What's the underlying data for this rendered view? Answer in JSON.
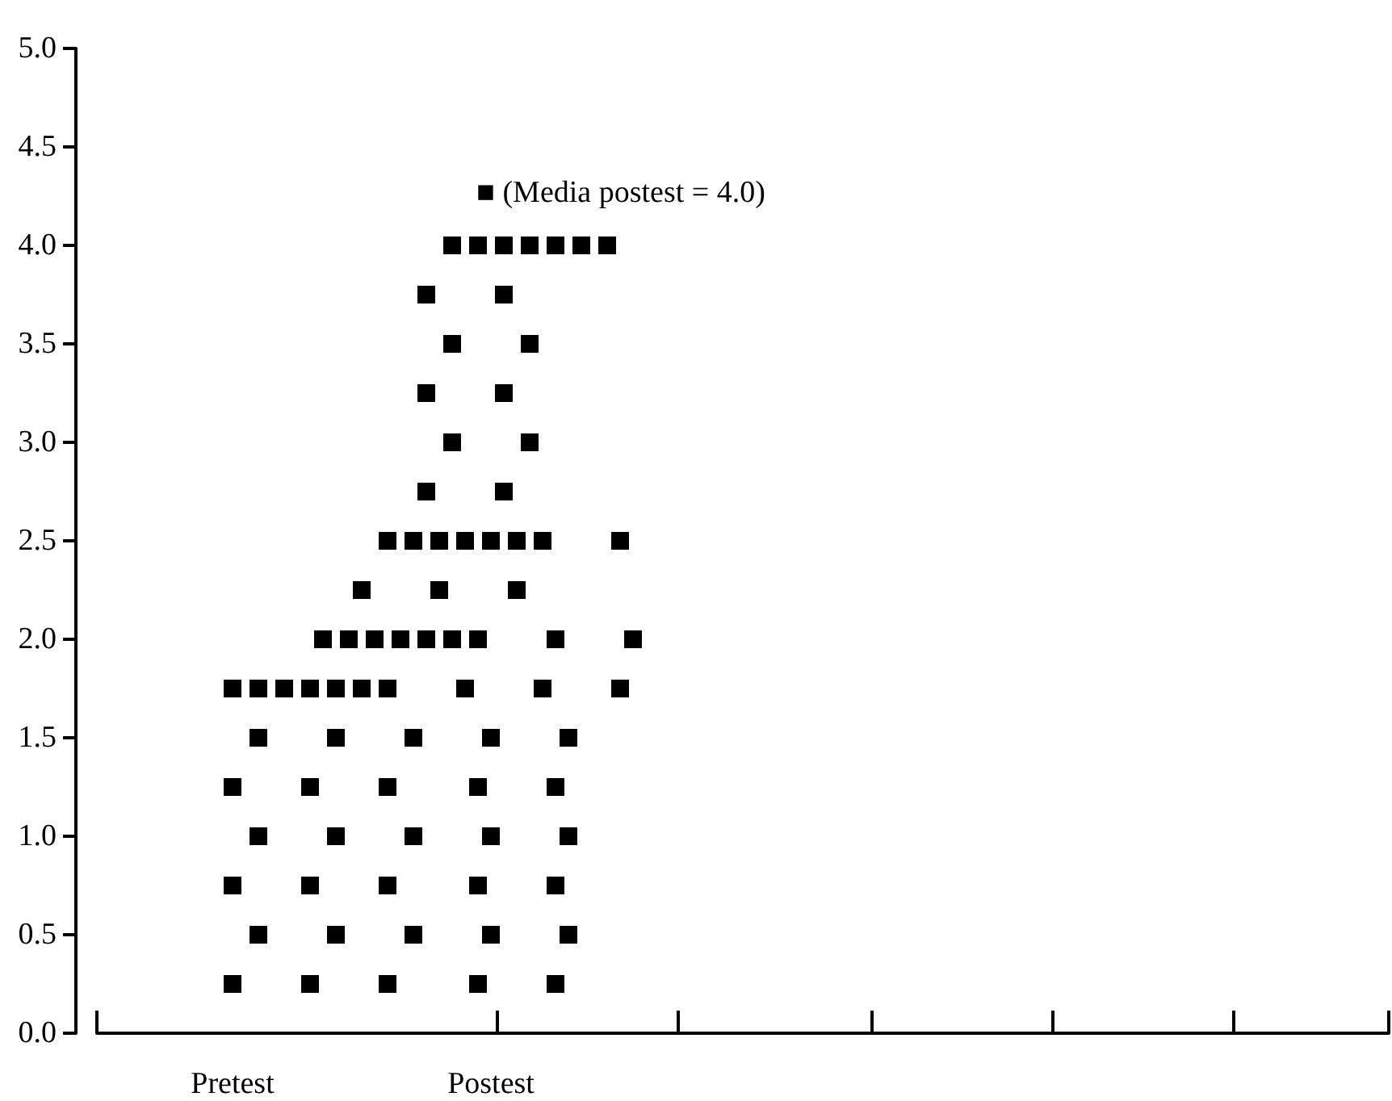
{
  "chart_data": {
    "type": "scatter",
    "marker": "square",
    "categories": [
      null,
      null,
      null,
      null,
      null,
      null,
      null,
      null,
      null,
      null,
      "Pretest",
      null,
      null,
      null,
      null,
      null,
      null,
      null,
      null,
      null,
      null,
      null,
      null,
      null,
      null,
      null,
      null,
      null,
      null,
      null,
      "Postest",
      null,
      null,
      null,
      null,
      null,
      null,
      null,
      null,
      null,
      null,
      null,
      null,
      null,
      null,
      null,
      null,
      null,
      null,
      null,
      null,
      null,
      null,
      null,
      null,
      null,
      null,
      null,
      null,
      null,
      null,
      null,
      null,
      null,
      null,
      null,
      null,
      null,
      null,
      null,
      null,
      null,
      null,
      null,
      null,
      null,
      null,
      null,
      null,
      null,
      null,
      null,
      null,
      null,
      null,
      null,
      null,
      null,
      null,
      null,
      null,
      null,
      null,
      null,
      null,
      null,
      null,
      null,
      null,
      null
    ],
    "ylim": [
      0,
      5
    ],
    "yticks": [
      {
        "value": 0,
        "label": "0.0"
      },
      {
        "value": 0.5,
        "label": "0.5"
      },
      {
        "value": 1,
        "label": "1.0"
      },
      {
        "value": 1.5,
        "label": "1.5"
      },
      {
        "value": 2,
        "label": "2.0"
      },
      {
        "value": 2.5,
        "label": "2.5"
      },
      {
        "value": 3,
        "label": "3.0"
      },
      {
        "value": 3.5,
        "label": "3.5"
      },
      {
        "value": 4,
        "label": "4.0"
      },
      {
        "value": 4.5,
        "label": "4.5"
      },
      {
        "value": 5,
        "label": "5.0"
      }
    ],
    "annotations": [
      "■ (Media postest = 4.0)"
    ],
    "series": [
      {
        "color": "#000000",
        "values": [
          null,
          null,
          null,
          null,
          null,
          null,
          null,
          null,
          null,
          null,
          0.25,
          null,
          null,
          null,
          null,
          null,
          0.25,
          null,
          null,
          null,
          null,
          null,
          0.25,
          null,
          null,
          null,
          null,
          null,
          null,
          0.25,
          null,
          null,
          null,
          null,
          null,
          0.25,
          null,
          null,
          null,
          null,
          null,
          null,
          null,
          null,
          null,
          null,
          null,
          null,
          null,
          null,
          null,
          null,
          null,
          null,
          null,
          null,
          null,
          null,
          null,
          null,
          null,
          null,
          null,
          null,
          null,
          null,
          null,
          null,
          null,
          null,
          null,
          null,
          null,
          null,
          null,
          null,
          null,
          null,
          null,
          null,
          null,
          null,
          null,
          null,
          null,
          null,
          null,
          null,
          null,
          null,
          null,
          null,
          null,
          null,
          null,
          null,
          null,
          null,
          null,
          null
        ]
      },
      {
        "color": "#000000",
        "values": [
          null,
          null,
          null,
          null,
          null,
          null,
          null,
          null,
          null,
          null,
          null,
          null,
          0.5,
          null,
          null,
          null,
          null,
          null,
          0.5,
          null,
          null,
          null,
          null,
          null,
          0.5,
          null,
          null,
          null,
          null,
          null,
          0.5,
          null,
          null,
          null,
          null,
          null,
          0.5,
          null,
          null,
          null,
          null,
          null,
          null,
          null,
          null,
          null,
          null,
          null,
          null,
          null,
          null,
          null,
          null,
          null,
          null,
          null,
          null,
          null,
          null,
          null,
          null,
          null,
          null,
          null,
          null,
          null,
          null,
          null,
          null,
          null,
          null,
          null,
          null,
          null,
          null,
          null,
          null,
          null,
          null,
          null,
          null,
          null,
          null,
          null,
          null,
          null,
          null,
          null,
          null,
          null,
          null,
          null,
          null,
          null,
          null,
          null,
          null,
          null,
          null,
          null
        ]
      },
      {
        "color": "#000000",
        "values": [
          null,
          null,
          null,
          null,
          null,
          null,
          null,
          null,
          null,
          null,
          0.75,
          null,
          null,
          null,
          null,
          null,
          0.75,
          null,
          null,
          null,
          null,
          null,
          0.75,
          null,
          null,
          null,
          null,
          null,
          null,
          0.75,
          null,
          null,
          null,
          null,
          null,
          0.75,
          null,
          null,
          null,
          null,
          null,
          null,
          null,
          null,
          null,
          null,
          null,
          null,
          null,
          null,
          null,
          null,
          null,
          null,
          null,
          null,
          null,
          null,
          null,
          null,
          null,
          null,
          null,
          null,
          null,
          null,
          null,
          null,
          null,
          null,
          null,
          null,
          null,
          null,
          null,
          null,
          null,
          null,
          null,
          null,
          null,
          null,
          null,
          null,
          null,
          null,
          null,
          null,
          null,
          null,
          null,
          null,
          null,
          null,
          null,
          null,
          null,
          null,
          null,
          null
        ]
      },
      {
        "color": "#000000",
        "values": [
          null,
          null,
          null,
          null,
          null,
          null,
          null,
          null,
          null,
          null,
          null,
          null,
          1,
          null,
          null,
          null,
          null,
          null,
          1,
          null,
          null,
          null,
          null,
          null,
          1,
          null,
          null,
          null,
          null,
          null,
          1,
          null,
          null,
          null,
          null,
          null,
          1,
          null,
          null,
          null,
          null,
          null,
          null,
          null,
          null,
          null,
          null,
          null,
          null,
          null,
          null,
          null,
          null,
          null,
          null,
          null,
          null,
          null,
          null,
          null,
          null,
          null,
          null,
          null,
          null,
          null,
          null,
          null,
          null,
          null,
          null,
          null,
          null,
          null,
          null,
          null,
          null,
          null,
          null,
          null,
          null,
          null,
          null,
          null,
          null,
          null,
          null,
          null,
          null,
          null,
          null,
          null,
          null,
          null,
          null,
          null,
          null,
          null,
          null,
          null
        ]
      },
      {
        "color": "#000000",
        "values": [
          null,
          null,
          null,
          null,
          null,
          null,
          null,
          null,
          null,
          null,
          1.25,
          null,
          null,
          null,
          null,
          null,
          1.25,
          null,
          null,
          null,
          null,
          null,
          1.25,
          null,
          null,
          null,
          null,
          null,
          null,
          1.25,
          null,
          null,
          null,
          null,
          null,
          1.25,
          null,
          null,
          null,
          null,
          null,
          null,
          null,
          null,
          null,
          null,
          null,
          null,
          null,
          null,
          null,
          null,
          null,
          null,
          null,
          null,
          null,
          null,
          null,
          null,
          null,
          null,
          null,
          null,
          null,
          null,
          null,
          null,
          null,
          null,
          null,
          null,
          null,
          null,
          null,
          null,
          null,
          null,
          null,
          null,
          null,
          null,
          null,
          null,
          null,
          null,
          null,
          null,
          null,
          null,
          null,
          null,
          null,
          null,
          null,
          null,
          null,
          null,
          null,
          null
        ]
      },
      {
        "color": "#000000",
        "values": [
          null,
          null,
          null,
          null,
          null,
          null,
          null,
          null,
          null,
          null,
          null,
          null,
          1.5,
          null,
          null,
          null,
          null,
          null,
          1.5,
          null,
          null,
          null,
          null,
          null,
          1.5,
          null,
          null,
          null,
          null,
          null,
          1.5,
          null,
          null,
          null,
          null,
          null,
          1.5,
          null,
          null,
          null,
          null,
          null,
          null,
          null,
          null,
          null,
          null,
          null,
          null,
          null,
          null,
          null,
          null,
          null,
          null,
          null,
          null,
          null,
          null,
          null,
          null,
          null,
          null,
          null,
          null,
          null,
          null,
          null,
          null,
          null,
          null,
          null,
          null,
          null,
          null,
          null,
          null,
          null,
          null,
          null,
          null,
          null,
          null,
          null,
          null,
          null,
          null,
          null,
          null,
          null,
          null,
          null,
          null,
          null,
          null,
          null,
          null,
          null,
          null,
          null
        ]
      },
      {
        "color": "#000000",
        "values": [
          null,
          null,
          null,
          null,
          null,
          null,
          null,
          null,
          null,
          null,
          1.75,
          null,
          1.75,
          null,
          1.75,
          null,
          1.75,
          null,
          1.75,
          null,
          1.75,
          null,
          1.75,
          null,
          null,
          null,
          null,
          null,
          1.75,
          null,
          null,
          null,
          null,
          null,
          1.75,
          null,
          null,
          null,
          null,
          null,
          1.75,
          null,
          null,
          null,
          null,
          null,
          null,
          null,
          null,
          null,
          null,
          null,
          null,
          null,
          null,
          null,
          null,
          null,
          null,
          null,
          null,
          null,
          null,
          null,
          null,
          null,
          null,
          null,
          null,
          null,
          null,
          null,
          null,
          null,
          null,
          null,
          null,
          null,
          null,
          null,
          null,
          null,
          null,
          null,
          null,
          null,
          null,
          null,
          null,
          null,
          null,
          null,
          null,
          null,
          null,
          null,
          null,
          null,
          null,
          null
        ]
      },
      {
        "color": "#000000",
        "values": [
          null,
          null,
          null,
          null,
          null,
          null,
          null,
          null,
          null,
          null,
          null,
          null,
          null,
          null,
          null,
          null,
          null,
          2,
          null,
          2,
          null,
          2,
          null,
          2,
          null,
          2,
          null,
          2,
          null,
          2,
          null,
          null,
          null,
          null,
          null,
          2,
          null,
          null,
          null,
          null,
          null,
          2,
          null,
          null,
          null,
          null,
          null,
          null,
          null,
          null,
          null,
          null,
          null,
          null,
          null,
          null,
          null,
          null,
          null,
          null,
          null,
          null,
          null,
          null,
          null,
          null,
          null,
          null,
          null,
          null,
          null,
          null,
          null,
          null,
          null,
          null,
          null,
          null,
          null,
          null,
          null,
          null,
          null,
          null,
          null,
          null,
          null,
          null,
          null,
          null,
          null,
          null,
          null,
          null,
          null,
          null,
          null,
          null,
          null,
          null
        ]
      },
      {
        "color": "#000000",
        "values": [
          null,
          null,
          null,
          null,
          null,
          null,
          null,
          null,
          null,
          null,
          null,
          null,
          null,
          null,
          null,
          null,
          null,
          null,
          null,
          null,
          2.25,
          null,
          null,
          null,
          null,
          null,
          2.25,
          null,
          null,
          null,
          null,
          null,
          2.25,
          null,
          null,
          null,
          null,
          null,
          null,
          null,
          null,
          null,
          null,
          null,
          null,
          null,
          null,
          null,
          null,
          null,
          null,
          null,
          null,
          null,
          null,
          null,
          null,
          null,
          null,
          null,
          null,
          null,
          null,
          null,
          null,
          null,
          null,
          null,
          null,
          null,
          null,
          null,
          null,
          null,
          null,
          null,
          null,
          null,
          null,
          null,
          null,
          null,
          null,
          null,
          null,
          null,
          null,
          null,
          null,
          null,
          null,
          null,
          null,
          null,
          null,
          null,
          null,
          null,
          null,
          null
        ]
      },
      {
        "color": "#000000",
        "values": [
          null,
          null,
          null,
          null,
          null,
          null,
          null,
          null,
          null,
          null,
          null,
          null,
          null,
          null,
          null,
          null,
          null,
          null,
          null,
          null,
          null,
          null,
          2.5,
          null,
          2.5,
          null,
          2.5,
          null,
          2.5,
          null,
          2.5,
          null,
          2.5,
          null,
          2.5,
          null,
          null,
          null,
          null,
          null,
          2.5,
          null,
          null,
          null,
          null,
          null,
          null,
          null,
          null,
          null,
          null,
          null,
          null,
          null,
          null,
          null,
          null,
          null,
          null,
          null,
          null,
          null,
          null,
          null,
          null,
          null,
          null,
          null,
          null,
          null,
          null,
          null,
          null,
          null,
          null,
          null,
          null,
          null,
          null,
          null,
          null,
          null,
          null,
          null,
          null,
          null,
          null,
          null,
          null,
          null,
          null,
          null,
          null,
          null,
          null,
          null,
          null,
          null,
          null,
          null
        ]
      },
      {
        "color": "#000000",
        "values": [
          null,
          null,
          null,
          null,
          null,
          null,
          null,
          null,
          null,
          null,
          null,
          null,
          null,
          null,
          null,
          null,
          null,
          null,
          null,
          null,
          null,
          null,
          null,
          null,
          null,
          2.75,
          null,
          null,
          null,
          null,
          null,
          2.75,
          null,
          null,
          null,
          null,
          null,
          null,
          null,
          null,
          null,
          null,
          null,
          null,
          null,
          null,
          null,
          null,
          null,
          null,
          null,
          null,
          null,
          null,
          null,
          null,
          null,
          null,
          null,
          null,
          null,
          null,
          null,
          null,
          null,
          null,
          null,
          null,
          null,
          null,
          null,
          null,
          null,
          null,
          null,
          null,
          null,
          null,
          null,
          null,
          null,
          null,
          null,
          null,
          null,
          null,
          null,
          null,
          null,
          null,
          null,
          null,
          null,
          null,
          null,
          null,
          null,
          null,
          null,
          null
        ]
      },
      {
        "color": "#000000",
        "values": [
          null,
          null,
          null,
          null,
          null,
          null,
          null,
          null,
          null,
          null,
          null,
          null,
          null,
          null,
          null,
          null,
          null,
          null,
          null,
          null,
          null,
          null,
          null,
          null,
          null,
          null,
          null,
          3,
          null,
          null,
          null,
          null,
          null,
          3,
          null,
          null,
          null,
          null,
          null,
          null,
          null,
          null,
          null,
          null,
          null,
          null,
          null,
          null,
          null,
          null,
          null,
          null,
          null,
          null,
          null,
          null,
          null,
          null,
          null,
          null,
          null,
          null,
          null,
          null,
          null,
          null,
          null,
          null,
          null,
          null,
          null,
          null,
          null,
          null,
          null,
          null,
          null,
          null,
          null,
          null,
          null,
          null,
          null,
          null,
          null,
          null,
          null,
          null,
          null,
          null,
          null,
          null,
          null,
          null,
          null,
          null,
          null,
          null,
          null,
          null
        ]
      },
      {
        "color": "#000000",
        "values": [
          null,
          null,
          null,
          null,
          null,
          null,
          null,
          null,
          null,
          null,
          null,
          null,
          null,
          null,
          null,
          null,
          null,
          null,
          null,
          null,
          null,
          null,
          null,
          null,
          null,
          3.25,
          null,
          null,
          null,
          null,
          null,
          3.25,
          null,
          null,
          null,
          null,
          null,
          null,
          null,
          null,
          null,
          null,
          null,
          null,
          null,
          null,
          null,
          null,
          null,
          null,
          null,
          null,
          null,
          null,
          null,
          null,
          null,
          null,
          null,
          null,
          null,
          null,
          null,
          null,
          null,
          null,
          null,
          null,
          null,
          null,
          null,
          null,
          null,
          null,
          null,
          null,
          null,
          null,
          null,
          null,
          null,
          null,
          null,
          null,
          null,
          null,
          null,
          null,
          null,
          null,
          null,
          null,
          null,
          null,
          null,
          null,
          null,
          null,
          null,
          null
        ]
      },
      {
        "color": "#000000",
        "values": [
          null,
          null,
          null,
          null,
          null,
          null,
          null,
          null,
          null,
          null,
          null,
          null,
          null,
          null,
          null,
          null,
          null,
          null,
          null,
          null,
          null,
          null,
          null,
          null,
          null,
          null,
          null,
          3.5,
          null,
          null,
          null,
          null,
          null,
          3.5,
          null,
          null,
          null,
          null,
          null,
          null,
          null,
          null,
          null,
          null,
          null,
          null,
          null,
          null,
          null,
          null,
          null,
          null,
          null,
          null,
          null,
          null,
          null,
          null,
          null,
          null,
          null,
          null,
          null,
          null,
          null,
          null,
          null,
          null,
          null,
          null,
          null,
          null,
          null,
          null,
          null,
          null,
          null,
          null,
          null,
          null,
          null,
          null,
          null,
          null,
          null,
          null,
          null,
          null,
          null,
          null,
          null,
          null,
          null,
          null,
          null,
          null,
          null,
          null,
          null,
          null
        ]
      },
      {
        "color": "#000000",
        "values": [
          null,
          null,
          null,
          null,
          null,
          null,
          null,
          null,
          null,
          null,
          null,
          null,
          null,
          null,
          null,
          null,
          null,
          null,
          null,
          null,
          null,
          null,
          null,
          null,
          null,
          3.75,
          null,
          null,
          null,
          null,
          null,
          3.75,
          null,
          null,
          null,
          null,
          null,
          null,
          null,
          null,
          null,
          null,
          null,
          null,
          null,
          null,
          null,
          null,
          null,
          null,
          null,
          null,
          null,
          null,
          null,
          null,
          null,
          null,
          null,
          null,
          null,
          null,
          null,
          null,
          null,
          null,
          null,
          null,
          null,
          null,
          null,
          null,
          null,
          null,
          null,
          null,
          null,
          null,
          null,
          null,
          null,
          null,
          null,
          null,
          null,
          null,
          null,
          null,
          null,
          null,
          null,
          null,
          null,
          null,
          null,
          null,
          null,
          null,
          null,
          null
        ]
      },
      {
        "color": "#000000",
        "values": [
          null,
          null,
          null,
          null,
          null,
          null,
          null,
          null,
          null,
          null,
          null,
          null,
          null,
          null,
          null,
          null,
          null,
          null,
          null,
          null,
          null,
          null,
          null,
          null,
          null,
          null,
          null,
          4,
          null,
          4,
          null,
          4,
          null,
          4,
          null,
          4,
          null,
          4,
          null,
          4,
          null,
          null,
          null,
          null,
          null,
          null,
          null,
          null,
          null,
          null,
          null,
          null,
          null,
          null,
          null,
          null,
          null,
          null,
          null,
          null,
          null,
          null,
          null,
          null,
          null,
          null,
          null,
          null,
          null,
          null,
          null,
          null,
          null,
          null,
          null,
          null,
          null,
          null,
          null,
          null,
          null,
          null,
          null,
          null,
          null,
          null,
          null,
          null,
          null,
          null,
          null,
          null,
          null,
          null,
          null,
          null,
          null,
          null,
          null,
          null
        ]
      }
    ]
  }
}
